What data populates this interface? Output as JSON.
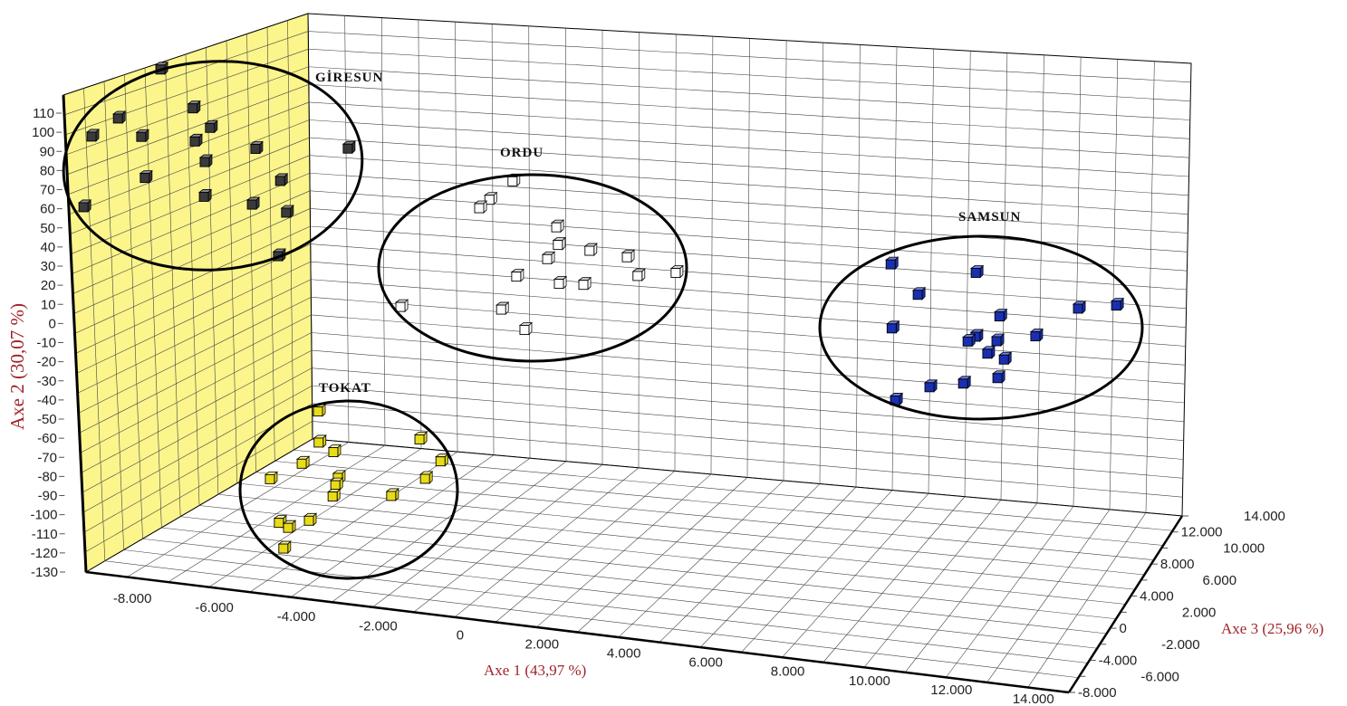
{
  "chart_data": {
    "type": "scatter",
    "projection": "3d",
    "axes": {
      "x": {
        "label": "Axe 1 (43,97 %)",
        "range": [
          -9000,
          15000
        ],
        "ticks": [
          -8000,
          -6000,
          -4000,
          -2000,
          0,
          2000,
          4000,
          6000,
          8000,
          10000,
          12000,
          14000
        ],
        "tick_labels": [
          "-8.000",
          "-6.000",
          "-4.000",
          "-2.000",
          "0",
          "2.000",
          "4.000",
          "6.000",
          "8.000",
          "10.000",
          "12.000",
          "14.000"
        ]
      },
      "y": {
        "label": "Axe 2 (30,07 %)",
        "range": [
          -130,
          115
        ],
        "ticks": [
          110,
          100,
          90,
          80,
          70,
          60,
          50,
          40,
          30,
          20,
          10,
          0,
          -10,
          -20,
          -30,
          -40,
          -50,
          -60,
          -70,
          -80,
          -90,
          -100,
          -110,
          -120,
          -130
        ],
        "tick_labels": [
          "110",
          "100",
          "90",
          "80",
          "70",
          "60",
          "50",
          "40",
          "30",
          "20",
          "10",
          "0",
          "-10",
          "-20",
          "-30",
          "-40",
          "-50",
          "-60",
          "-70",
          "-80",
          "-90",
          "-100",
          "-110",
          "-120",
          "-130"
        ]
      },
      "z": {
        "label": "Axe 3 (25,96 %)",
        "range": [
          -8000,
          14000
        ],
        "ticks": [
          -8000,
          -6000,
          -4000,
          -2000,
          0,
          2000,
          4000,
          6000,
          8000,
          10000,
          12000,
          14000
        ],
        "tick_labels": [
          "-8.000",
          "-6.000",
          "-4.000",
          "-2.000",
          "0",
          "2.000",
          "4.000",
          "6.000",
          "8.000",
          "10.000",
          "12.000",
          "14.000"
        ]
      }
    },
    "grid": true,
    "series": [
      {
        "name": "GİRESUN",
        "color": "#3a3a3a",
        "top": "#8a8a8a",
        "z": -5800,
        "points": [
          [
            -7160,
            126
          ],
          [
            -8260,
            98
          ],
          [
            -6410,
            108
          ],
          [
            -8930,
            87
          ],
          [
            -7710,
            90
          ],
          [
            -6010,
            99
          ],
          [
            -6400,
            91
          ],
          [
            -6180,
            81
          ],
          [
            -4920,
            91
          ],
          [
            -2650,
            97
          ],
          [
            -7670,
            69
          ],
          [
            -4350,
            76
          ],
          [
            -9210,
            50
          ],
          [
            -6240,
            63
          ],
          [
            -5070,
            62
          ],
          [
            -4240,
            60
          ],
          [
            -4490,
            37
          ]
        ]
      },
      {
        "name": "ORDU",
        "color": "#ffffff",
        "top": "#d8d8d8",
        "z": 5200,
        "points": [
          [
            -1500,
            49
          ],
          [
            -2090,
            38
          ],
          [
            -2350,
            33
          ],
          [
            -480,
            28
          ],
          [
            -460,
            19
          ],
          [
            310,
            18
          ],
          [
            1220,
            17
          ],
          [
            -740,
            11
          ],
          [
            -1520,
            0
          ],
          [
            -480,
            -1
          ],
          [
            120,
            0
          ],
          [
            1460,
            8
          ],
          [
            2400,
            12
          ],
          [
            -4400,
            -23
          ],
          [
            -1930,
            -18
          ],
          [
            -1380,
            -27
          ]
        ]
      },
      {
        "name": "SAMSUN",
        "color": "#1a2fb0",
        "top": "#6f80e0",
        "z": 5200,
        "points": [
          [
            7690,
            30
          ],
          [
            9770,
            31
          ],
          [
            8320,
            16
          ],
          [
            12240,
            19
          ],
          [
            13180,
            23
          ],
          [
            7640,
            -3
          ],
          [
            10300,
            10
          ],
          [
            9690,
            -2
          ],
          [
            9490,
            -5
          ],
          [
            10200,
            -3
          ],
          [
            11160,
            2
          ],
          [
            9960,
            -10
          ],
          [
            10360,
            -12
          ],
          [
            10180,
            -22
          ],
          [
            9330,
            -27
          ],
          [
            8500,
            -31
          ],
          [
            7640,
            -40
          ]
        ]
      },
      {
        "name": "TOKAT",
        "color": "#e8dc18",
        "top": "#fbf59a",
        "z": -3600,
        "points": [
          [
            -4260,
            -49
          ],
          [
            -1800,
            -57
          ],
          [
            -4280,
            -65
          ],
          [
            -3930,
            -69
          ],
          [
            -1310,
            -67
          ],
          [
            -4720,
            -77
          ],
          [
            -3850,
            -82
          ],
          [
            -5520,
            -87
          ],
          [
            -1710,
            -77
          ],
          [
            -3920,
            -86
          ],
          [
            -4000,
            -92
          ],
          [
            -2560,
            -88
          ],
          [
            -5350,
            -109
          ],
          [
            -5130,
            -111
          ],
          [
            -4610,
            -106
          ],
          [
            -5270,
            -122
          ]
        ]
      }
    ]
  }
}
